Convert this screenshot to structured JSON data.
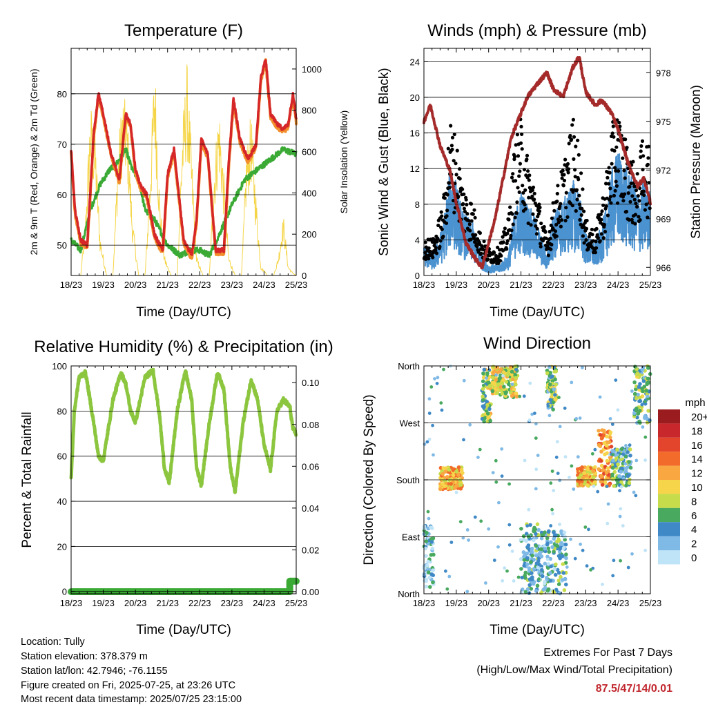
{
  "panels": {
    "temperature": {
      "title": "Temperature (F)",
      "xlabel": "Time (Day/UTC)",
      "ylabel_left": "2m & 9m T (Red, Orange) & 2m Td (Green)",
      "ylabel_right": "Solar Insolation (Yellow)",
      "colors": {
        "t2m": "#d62728",
        "t9m": "#f28e2b",
        "td": "#3aaa35",
        "solar": "#f5d547"
      }
    },
    "winds": {
      "title": "Winds (mph) & Pressure (mb)",
      "xlabel": "Time (Day/UTC)",
      "ylabel_left": "Sonic Wind & Gust (Blue, Black)",
      "ylabel_right": "Station Pressure (Maroon)",
      "colors": {
        "wind": "#4b92d0",
        "gust": "#000000",
        "pressure": "#a52a2a"
      }
    },
    "humidity": {
      "title": "Relative Humidity (%) & Precipitation (in)",
      "xlabel": "Time (Day/UTC)",
      "ylabel_left": "Percent & Total Rainfall",
      "colors": {
        "rh": "#8cc63f",
        "precip": "#3aaa35"
      }
    },
    "direction": {
      "title": "Wind Direction",
      "xlabel": "Time (Day/UTC)",
      "ylabel_left": "Direction (Colored By Speed)",
      "legend_title": "mph",
      "legend_labels": [
        "20+",
        "18",
        "16",
        "14",
        "12",
        "10",
        "8",
        "6",
        "4",
        "2",
        "0"
      ],
      "legend_colors": [
        "#9b1c1f",
        "#c8272b",
        "#e2452b",
        "#f26b2b",
        "#f9a741",
        "#f6d54b",
        "#c6dc4b",
        "#48a95f",
        "#3f89c6",
        "#7fb9e6",
        "#bfe3f7"
      ]
    }
  },
  "footer": {
    "location": "Location: Tully",
    "elevation": "Station elevation: 378.379 m",
    "latlon": "Station lat/lon: 42.7946; -76.1155",
    "created": "Figure created on Fri, 2025-07-25, at 23:26 UTC",
    "recent": "Most recent data timestamp: 2025/07/25 23:15:00"
  },
  "extremes": {
    "title": "Extremes For Past 7 Days",
    "subtitle": "(High/Low/Max Wind/Total Precipitation)",
    "value": "87.5/47/14/0.01"
  },
  "chart_data": [
    {
      "type": "line",
      "title": "Temperature (F)",
      "xlabel": "Time (Day/UTC)",
      "x_ticks": [
        "18/23",
        "19/23",
        "20/23",
        "21/23",
        "22/23",
        "23/23",
        "24/23",
        "25/23"
      ],
      "xlim": [
        0,
        7
      ],
      "ylim": [
        44,
        89
      ],
      "y_ticks": [
        50,
        60,
        70,
        80
      ],
      "y2lim": [
        0,
        1100
      ],
      "y2_ticks": [
        0,
        200,
        400,
        600,
        800,
        1000
      ],
      "series": [
        {
          "name": "2m T (Red)",
          "axis": "left",
          "x": [
            0,
            0.12,
            0.3,
            0.5,
            0.7,
            0.85,
            1.0,
            1.25,
            1.5,
            1.7,
            1.85,
            2.0,
            2.15,
            2.35,
            2.6,
            2.85,
            3.0,
            3.2,
            3.5,
            3.75,
            3.9,
            4.05,
            4.25,
            4.5,
            4.75,
            4.9,
            5.05,
            5.25,
            5.5,
            5.75,
            5.9,
            6.05,
            6.2,
            6.4,
            6.6,
            6.75,
            6.9,
            7.0
          ],
          "values": [
            69,
            57,
            51,
            50,
            72,
            80,
            76,
            68,
            63,
            76,
            74,
            65,
            62,
            60,
            52,
            49,
            64,
            69,
            51,
            48,
            55,
            71,
            68,
            49,
            49,
            66,
            79,
            71,
            67,
            70,
            83,
            87,
            76,
            74,
            73,
            74,
            80,
            75
          ]
        },
        {
          "name": "2m Td (Green)",
          "axis": "left",
          "x": [
            0,
            0.3,
            0.6,
            0.9,
            1.2,
            1.4,
            1.7,
            1.9,
            2.1,
            2.3,
            2.6,
            3.0,
            3.4,
            3.7,
            4.0,
            4.3,
            4.6,
            5.0,
            5.4,
            5.8,
            6.2,
            6.6,
            7.0
          ],
          "values": [
            51,
            49,
            57,
            62,
            65,
            66,
            69,
            65,
            63,
            57,
            55,
            50,
            48,
            49,
            49,
            48,
            52,
            58,
            63,
            65,
            67,
            69,
            68
          ]
        },
        {
          "name": "Solar Insolation (Yellow)",
          "axis": "right",
          "x": [
            0,
            0.3,
            0.45,
            0.6,
            0.75,
            0.9,
            1.1,
            1.3,
            1.45,
            1.6,
            1.75,
            1.9,
            2.1,
            2.3,
            2.45,
            2.6,
            2.75,
            2.9,
            3.1,
            3.3,
            3.45,
            3.6,
            3.75,
            3.9,
            4.1,
            4.3,
            4.45,
            4.6,
            4.75,
            4.9,
            5.1,
            5.3,
            5.45,
            5.6,
            5.75,
            5.9,
            6.1,
            6.3,
            6.45,
            6.6,
            6.75,
            6.9,
            7.0
          ],
          "values": [
            0,
            0,
            300,
            850,
            700,
            200,
            0,
            0,
            600,
            900,
            800,
            300,
            0,
            0,
            500,
            1080,
            400,
            100,
            0,
            0,
            700,
            1050,
            600,
            100,
            0,
            0,
            550,
            850,
            500,
            100,
            0,
            0,
            600,
            800,
            400,
            50,
            0,
            0,
            100,
            300,
            50,
            10,
            0
          ]
        }
      ]
    },
    {
      "type": "line",
      "title": "Winds (mph) & Pressure (mb)",
      "xlabel": "Time (Day/UTC)",
      "x_ticks": [
        "18/23",
        "19/23",
        "20/23",
        "21/23",
        "22/23",
        "23/23",
        "24/23",
        "25/23"
      ],
      "xlim": [
        0,
        7
      ],
      "ylim": [
        0,
        25.5
      ],
      "y_ticks": [
        0,
        4,
        8,
        12,
        16,
        20,
        24
      ],
      "y2lim": [
        965.5,
        979.5
      ],
      "y2_ticks": [
        966,
        969,
        972,
        975,
        978
      ],
      "series": [
        {
          "name": "Sonic Wind (Blue)",
          "axis": "left",
          "x": [
            0,
            0.3,
            0.6,
            0.8,
            1.0,
            1.2,
            1.5,
            1.8,
            2.0,
            2.3,
            2.6,
            2.8,
            3.0,
            3.2,
            3.5,
            3.8,
            4.0,
            4.3,
            4.6,
            4.8,
            5.0,
            5.3,
            5.6,
            5.8,
            6.0,
            6.3,
            6.6,
            6.8,
            7.0
          ],
          "values": [
            3,
            2,
            5,
            10,
            9,
            6,
            5,
            2,
            1,
            1,
            2,
            6,
            8,
            7,
            5,
            2,
            6,
            7,
            9,
            8,
            4,
            3,
            6,
            10,
            12,
            10,
            8,
            9,
            8
          ]
        },
        {
          "name": "Gust (Black)",
          "axis": "left",
          "x": [
            0,
            0.3,
            0.6,
            0.8,
            1.0,
            1.2,
            1.5,
            1.8,
            2.0,
            2.3,
            2.6,
            2.8,
            3.0,
            3.2,
            3.5,
            3.8,
            4.0,
            4.3,
            4.6,
            4.8,
            5.0,
            5.3,
            5.6,
            5.8,
            6.0,
            6.3,
            6.6,
            6.8,
            7.0
          ],
          "values": [
            4,
            4,
            8,
            17,
            15,
            10,
            8,
            4,
            3,
            3,
            6,
            14,
            17,
            13,
            9,
            4,
            8,
            12,
            17,
            14,
            6,
            5,
            10,
            16,
            18,
            14,
            11,
            16,
            13
          ]
        },
        {
          "name": "Station Pressure (Maroon)",
          "axis": "right",
          "x": [
            0,
            0.2,
            0.5,
            0.8,
            1.0,
            1.3,
            1.6,
            1.8,
            2.0,
            2.2,
            2.5,
            2.7,
            2.9,
            3.2,
            3.5,
            3.8,
            4.0,
            4.3,
            4.6,
            4.8,
            5.0,
            5.3,
            5.5,
            5.8,
            6.0,
            6.3,
            6.6,
            6.8,
            7.0
          ],
          "values": [
            975,
            976,
            973.5,
            972,
            970,
            967.5,
            966.5,
            966,
            967.5,
            969,
            972,
            974,
            975,
            976.5,
            977.3,
            978,
            977,
            976.5,
            978.3,
            979,
            976.8,
            976,
            976.3,
            975.5,
            974.5,
            972.5,
            971,
            971.5,
            970
          ]
        }
      ]
    },
    {
      "type": "line",
      "title": "Relative Humidity (%) & Precipitation (in)",
      "xlabel": "Time (Day/UTC)",
      "x_ticks": [
        "18/23",
        "19/23",
        "20/23",
        "21/23",
        "22/23",
        "23/23",
        "24/23",
        "25/23"
      ],
      "xlim": [
        0,
        7
      ],
      "ylim": [
        -1,
        100
      ],
      "y_ticks": [
        0,
        20,
        40,
        60,
        80,
        100
      ],
      "y2lim": [
        -0.001,
        0.108
      ],
      "y2_ticks": [
        0.0,
        0.02,
        0.04,
        0.06,
        0.08,
        0.1
      ],
      "y2_tick_labels": [
        "0.00",
        "0.02",
        "0.04",
        "0.06",
        "0.08",
        "0.10"
      ],
      "series": [
        {
          "name": "Relative Humidity",
          "axis": "left",
          "x": [
            0,
            0.1,
            0.25,
            0.45,
            0.7,
            0.85,
            1.0,
            1.3,
            1.55,
            1.7,
            1.85,
            2.0,
            2.3,
            2.55,
            2.75,
            2.9,
            3.05,
            3.3,
            3.55,
            3.75,
            3.9,
            4.05,
            4.3,
            4.55,
            4.75,
            4.95,
            5.1,
            5.35,
            5.6,
            5.8,
            6.0,
            6.2,
            6.4,
            6.6,
            6.8,
            6.9,
            7.0
          ],
          "values": [
            50,
            80,
            95,
            97,
            75,
            60,
            58,
            85,
            97,
            92,
            80,
            75,
            95,
            98,
            78,
            55,
            48,
            80,
            98,
            85,
            55,
            47,
            75,
            97,
            90,
            55,
            44,
            75,
            94,
            85,
            65,
            54,
            80,
            85,
            82,
            72,
            70
          ]
        },
        {
          "name": "Total Rainfall",
          "axis": "right",
          "x": [
            0,
            6.8,
            6.8,
            7.0
          ],
          "values": [
            0.0,
            0.0,
            0.005,
            0.005
          ]
        }
      ]
    },
    {
      "type": "scatter",
      "title": "Wind Direction",
      "xlabel": "Time (Day/UTC)",
      "x_ticks": [
        "18/23",
        "19/23",
        "20/23",
        "21/23",
        "22/23",
        "23/23",
        "24/23",
        "25/23"
      ],
      "xlim": [
        0,
        7
      ],
      "ylim": [
        0,
        360
      ],
      "y_tick_values": [
        0,
        90,
        180,
        270,
        360
      ],
      "y_ticks": [
        "North",
        "East",
        "South",
        "West",
        "North"
      ],
      "color_by": "speed (mph)",
      "clusters": [
        {
          "x_range": [
            0.0,
            0.3
          ],
          "dir_range": [
            10,
            110
          ],
          "speed": 3
        },
        {
          "x_range": [
            0.5,
            1.2
          ],
          "dir_range": [
            165,
            200
          ],
          "speed": 11
        },
        {
          "x_range": [
            1.8,
            2.1
          ],
          "dir_range": [
            270,
            355
          ],
          "speed": 8
        },
        {
          "x_range": [
            2.1,
            2.9
          ],
          "dir_range": [
            310,
            360
          ],
          "speed": 9
        },
        {
          "x_range": [
            3.0,
            3.6
          ],
          "dir_range": [
            0,
            110
          ],
          "speed": 4
        },
        {
          "x_range": [
            3.6,
            4.4
          ],
          "dir_range": [
            0,
            100
          ],
          "speed": 4
        },
        {
          "x_range": [
            3.8,
            4.1
          ],
          "dir_range": [
            290,
            360
          ],
          "speed": 6
        },
        {
          "x_range": [
            4.75,
            5.3
          ],
          "dir_range": [
            170,
            200
          ],
          "speed": 11
        },
        {
          "x_range": [
            5.4,
            5.8
          ],
          "dir_range": [
            170,
            260
          ],
          "speed": 13
        },
        {
          "x_range": [
            5.8,
            6.4
          ],
          "dir_range": [
            170,
            230
          ],
          "speed": 5
        },
        {
          "x_range": [
            6.5,
            7.0
          ],
          "dir_range": [
            270,
            360
          ],
          "speed": 6
        }
      ]
    }
  ]
}
